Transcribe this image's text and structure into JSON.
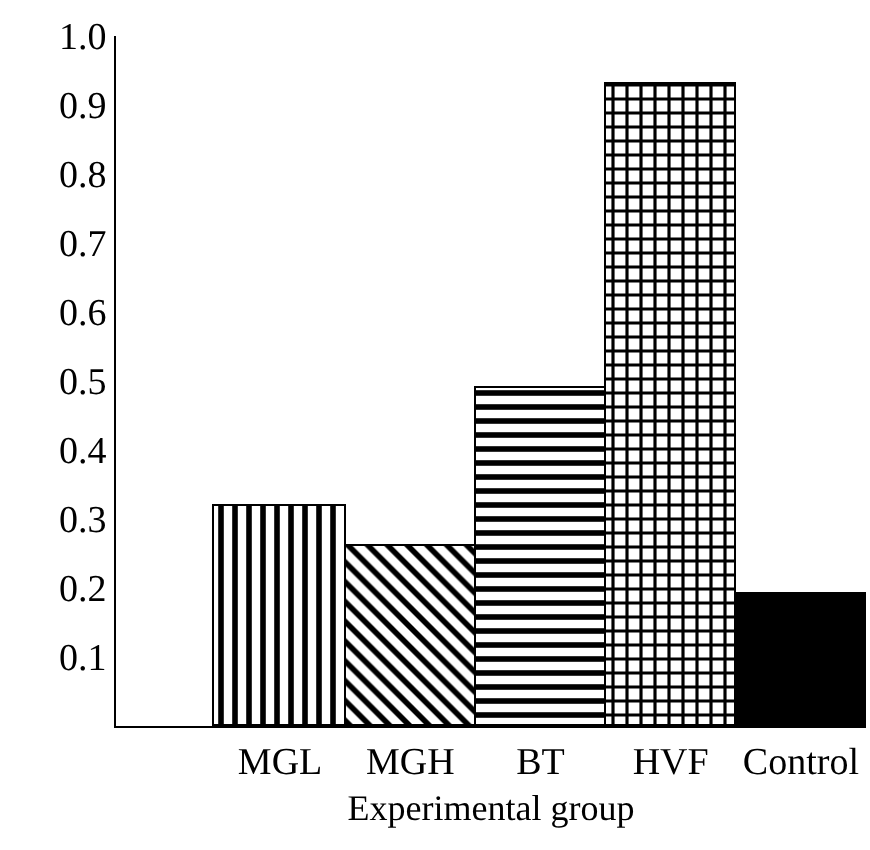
{
  "chart_data": {
    "type": "bar",
    "xlabel": "Experimental group",
    "categories": [
      "MGL",
      "MGH",
      "BT",
      "HVF",
      "Control"
    ],
    "values": [
      0.32,
      0.26,
      0.49,
      0.93,
      0.19
    ],
    "colors": [
      "#000000",
      "#000000",
      "#000000",
      "#000000",
      "#000000"
    ],
    "ylim": [
      0,
      1.0
    ],
    "yticks": [
      0.1,
      0.2,
      0.3,
      0.4,
      0.5,
      0.6,
      0.7,
      0.8,
      0.9,
      {
        "value": 1.0,
        "label": "1.0"
      }
    ],
    "grid": false
  }
}
